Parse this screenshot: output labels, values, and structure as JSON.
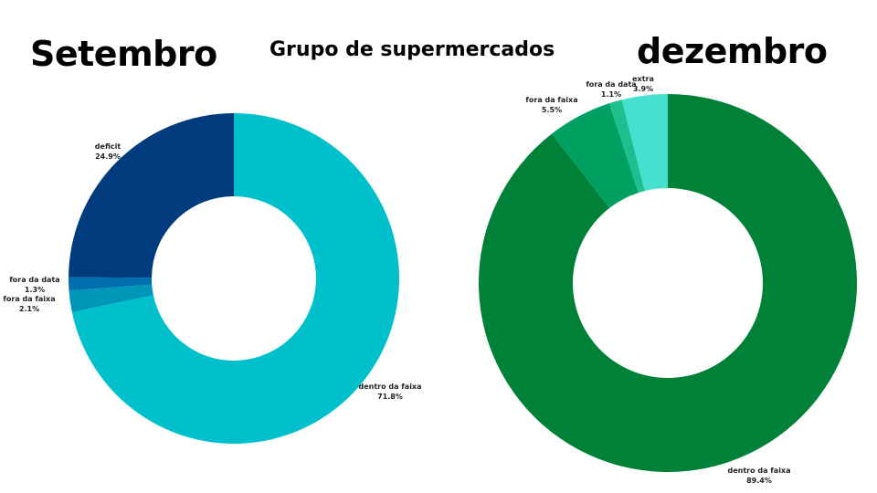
{
  "header": {
    "left_title": "Setembro",
    "center_title": "Grupo de supermercados",
    "right_title": "dezembro"
  },
  "chart_data": [
    {
      "type": "pie",
      "variant": "donut",
      "title": "Setembro",
      "slices": [
        {
          "label": "dentro da faixa",
          "value": 71.8,
          "display": "71.8%",
          "color": "#00c0cb"
        },
        {
          "label": "fora da faixa",
          "value": 2.1,
          "display": "2.1%",
          "color": "#0096b9"
        },
        {
          "label": "fora da data",
          "value": 1.3,
          "display": "1.3%",
          "color": "#006fad"
        },
        {
          "label": "deficit",
          "value": 24.9,
          "display": "24.9%",
          "color": "#003c7d"
        }
      ]
    },
    {
      "type": "pie",
      "variant": "donut",
      "title": "dezembro",
      "slices": [
        {
          "label": "dentro da faixa",
          "value": 89.4,
          "display": "89.4%",
          "color": "#008138"
        },
        {
          "label": "fora da faixa",
          "value": 5.5,
          "display": "5.5%",
          "color": "#00a063"
        },
        {
          "label": "fora da data",
          "value": 1.1,
          "display": "1.1%",
          "color": "#1ebf8f"
        },
        {
          "label": "extra",
          "value": 3.9,
          "display": "3.9%",
          "color": "#45e0cf"
        }
      ]
    }
  ]
}
